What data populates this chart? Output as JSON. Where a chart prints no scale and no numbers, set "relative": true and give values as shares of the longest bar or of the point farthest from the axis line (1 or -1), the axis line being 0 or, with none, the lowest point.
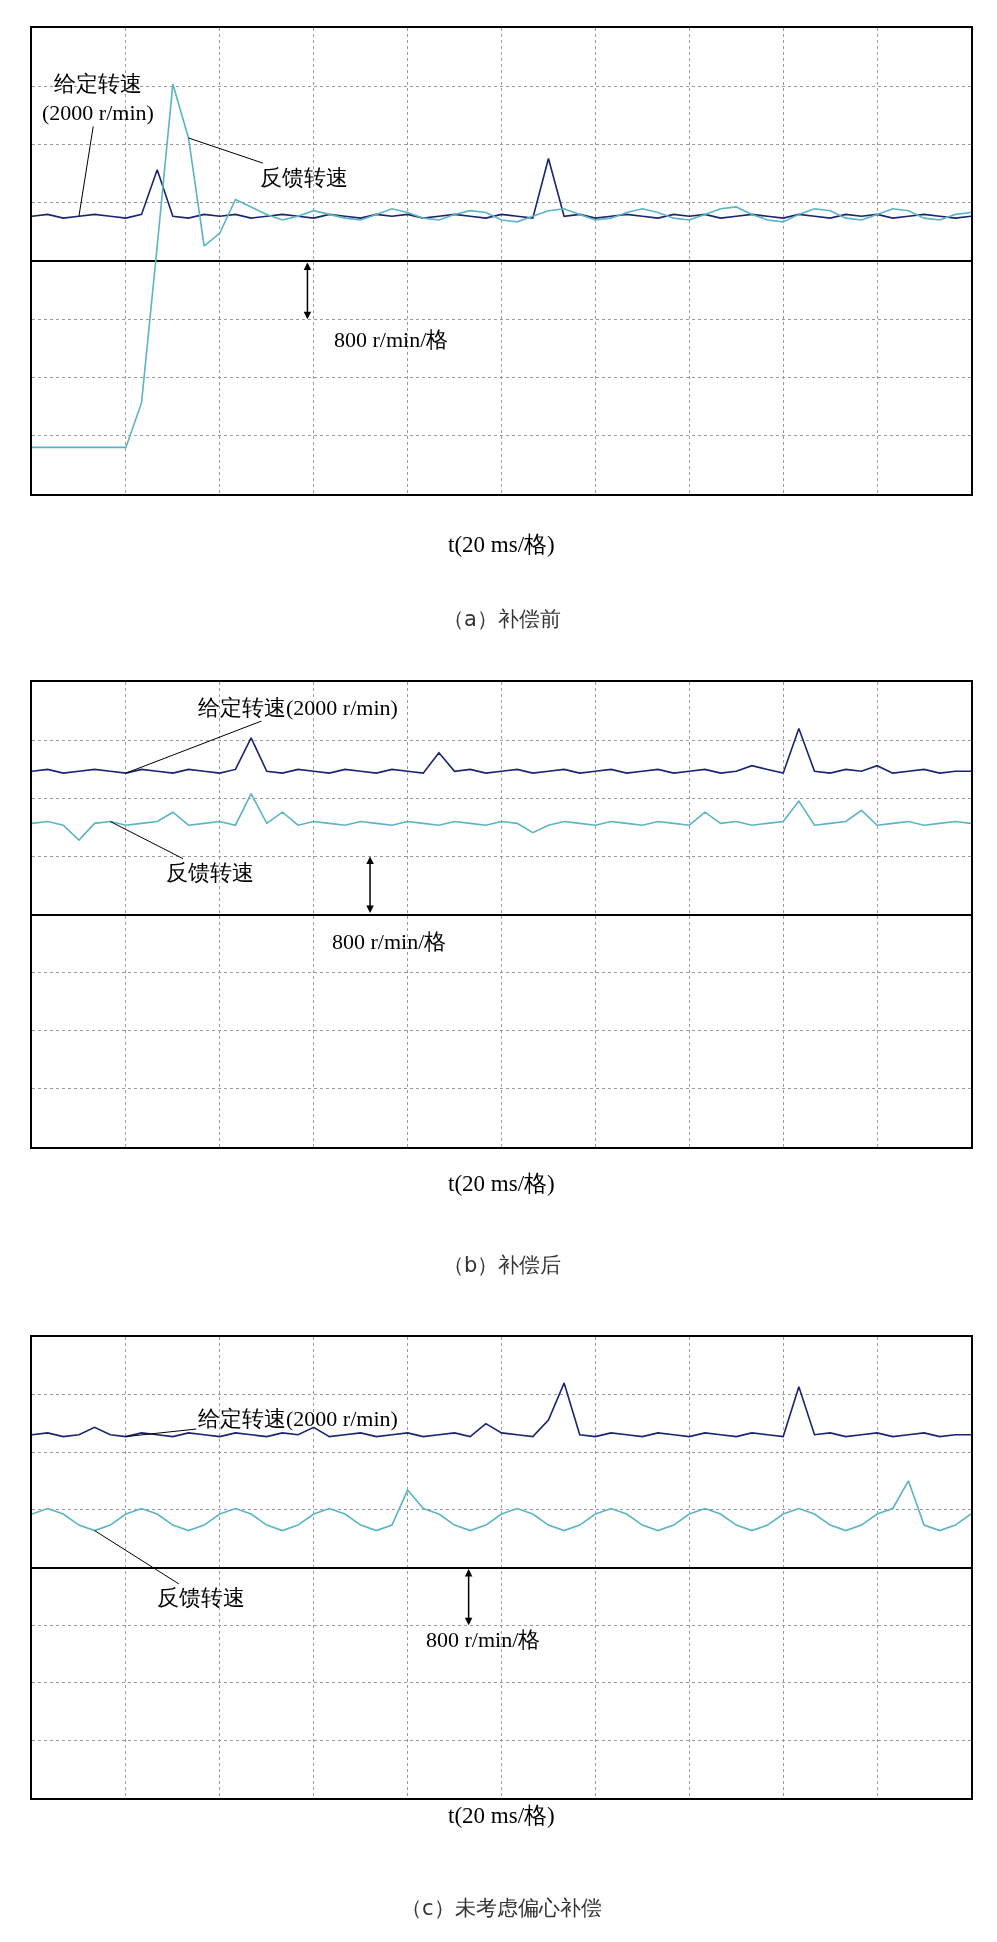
{
  "chart_data": [
    {
      "type": "line",
      "relative": true,
      "grid": true,
      "title": "（a）补偿前",
      "xlabel": "t(20 ms/格)",
      "categories": [
        null,
        null,
        null,
        null,
        null,
        null,
        null,
        null,
        null,
        null,
        null,
        null,
        null,
        null,
        null,
        null,
        null,
        null,
        null,
        null,
        null,
        null,
        null,
        null,
        null,
        null,
        null,
        null,
        null,
        null,
        null,
        null,
        null,
        null,
        null,
        null,
        null,
        null,
        null,
        null,
        null,
        null,
        null,
        null,
        null,
        null,
        null,
        null,
        null,
        null,
        null,
        null,
        null,
        null,
        null,
        null,
        null,
        null,
        null,
        null,
        null
      ],
      "series": [
        {
          "name": "给定转速\n(2000 r/min)",
          "color": "#1a2470",
          "values": [
            0.24,
            0.25,
            0.23,
            0.24,
            0.25,
            0.24,
            0.23,
            0.25,
            0.49,
            0.24,
            0.23,
            0.25,
            0.24,
            0.25,
            0.23,
            0.24,
            0.25,
            0.24,
            0.23,
            0.25,
            0.24,
            0.23,
            0.25,
            0.24,
            0.25,
            0.23,
            0.24,
            0.25,
            0.24,
            0.23,
            0.25,
            0.24,
            0.23,
            0.55,
            0.24,
            0.25,
            0.23,
            0.24,
            0.25,
            0.24,
            0.23,
            0.25,
            0.24,
            0.25,
            0.23,
            0.24,
            0.25,
            0.24,
            0.23,
            0.25,
            0.24,
            0.23,
            0.25,
            0.24,
            0.25,
            0.23,
            0.24,
            0.25,
            0.24,
            0.23,
            0.24
          ]
        },
        {
          "name": "反馈转速",
          "color": "#5ab4c4",
          "values": [
            -1.0,
            -1.0,
            -1.0,
            -1.0,
            -1.0,
            -1.0,
            -1.0,
            -0.76,
            0.08,
            0.95,
            0.66,
            0.08,
            0.15,
            0.33,
            0.29,
            0.25,
            0.22,
            0.24,
            0.27,
            0.25,
            0.23,
            0.22,
            0.25,
            0.28,
            0.26,
            0.23,
            0.22,
            0.25,
            0.27,
            0.26,
            0.22,
            0.21,
            0.24,
            0.27,
            0.28,
            0.25,
            0.22,
            0.23,
            0.26,
            0.28,
            0.26,
            0.23,
            0.22,
            0.25,
            0.28,
            0.29,
            0.25,
            0.22,
            0.21,
            0.25,
            0.28,
            0.27,
            0.23,
            0.22,
            0.25,
            0.28,
            0.27,
            0.23,
            0.22,
            0.25,
            0.26
          ]
        }
      ],
      "annotations": [
        "800 r/min/格"
      ]
    },
    {
      "type": "line",
      "relative": true,
      "grid": true,
      "title": "（b）补偿后",
      "xlabel": "t(20 ms/格)",
      "categories": [
        null,
        null,
        null,
        null,
        null,
        null,
        null,
        null,
        null,
        null,
        null,
        null,
        null,
        null,
        null,
        null,
        null,
        null,
        null,
        null,
        null,
        null,
        null,
        null,
        null,
        null,
        null,
        null,
        null,
        null,
        null,
        null,
        null,
        null,
        null,
        null,
        null,
        null,
        null,
        null,
        null,
        null,
        null,
        null,
        null,
        null,
        null,
        null,
        null,
        null,
        null,
        null,
        null,
        null,
        null,
        null,
        null,
        null,
        null,
        null,
        null
      ],
      "series": [
        {
          "name": "给定转速(2000 r/min)",
          "color": "#1a2470",
          "values": [
            0.77,
            0.78,
            0.76,
            0.77,
            0.78,
            0.77,
            0.76,
            0.78,
            0.77,
            0.76,
            0.78,
            0.77,
            0.76,
            0.78,
            0.95,
            0.77,
            0.76,
            0.78,
            0.77,
            0.76,
            0.78,
            0.77,
            0.76,
            0.78,
            0.77,
            0.76,
            0.87,
            0.77,
            0.78,
            0.76,
            0.77,
            0.78,
            0.76,
            0.77,
            0.78,
            0.76,
            0.77,
            0.78,
            0.76,
            0.77,
            0.78,
            0.76,
            0.77,
            0.78,
            0.76,
            0.77,
            0.8,
            0.78,
            0.76,
            1.0,
            0.77,
            0.76,
            0.78,
            0.77,
            0.8,
            0.76,
            0.77,
            0.78,
            0.76,
            0.77,
            0.77
          ]
        },
        {
          "name": "反馈转速",
          "color": "#5ab4c4",
          "values": [
            0.49,
            0.5,
            0.48,
            0.4,
            0.49,
            0.5,
            0.48,
            0.49,
            0.5,
            0.55,
            0.48,
            0.49,
            0.5,
            0.48,
            0.65,
            0.49,
            0.55,
            0.48,
            0.5,
            0.49,
            0.48,
            0.5,
            0.49,
            0.48,
            0.5,
            0.49,
            0.48,
            0.5,
            0.49,
            0.48,
            0.5,
            0.49,
            0.44,
            0.48,
            0.5,
            0.49,
            0.48,
            0.5,
            0.49,
            0.48,
            0.5,
            0.49,
            0.48,
            0.55,
            0.49,
            0.5,
            0.48,
            0.49,
            0.5,
            0.61,
            0.48,
            0.49,
            0.5,
            0.56,
            0.48,
            0.49,
            0.5,
            0.48,
            0.49,
            0.5,
            0.49
          ]
        }
      ],
      "annotations": [
        "800 r/min/格"
      ]
    },
    {
      "type": "line",
      "relative": true,
      "grid": true,
      "title": "（c）未考虑偏心补偿",
      "xlabel": "t(20 ms/格)",
      "categories": [
        null,
        null,
        null,
        null,
        null,
        null,
        null,
        null,
        null,
        null,
        null,
        null,
        null,
        null,
        null,
        null,
        null,
        null,
        null,
        null,
        null,
        null,
        null,
        null,
        null,
        null,
        null,
        null,
        null,
        null,
        null,
        null,
        null,
        null,
        null,
        null,
        null,
        null,
        null,
        null,
        null,
        null,
        null,
        null,
        null,
        null,
        null,
        null,
        null,
        null,
        null,
        null,
        null,
        null,
        null,
        null,
        null,
        null,
        null,
        null,
        null
      ],
      "series": [
        {
          "name": "给定转速(2000 r/min)",
          "color": "#1a2470",
          "values": [
            0.72,
            0.73,
            0.71,
            0.72,
            0.76,
            0.72,
            0.71,
            0.73,
            0.72,
            0.71,
            0.73,
            0.72,
            0.71,
            0.73,
            0.72,
            0.71,
            0.73,
            0.72,
            0.76,
            0.71,
            0.72,
            0.73,
            0.71,
            0.72,
            0.73,
            0.71,
            0.72,
            0.73,
            0.71,
            0.78,
            0.73,
            0.72,
            0.71,
            0.8,
            1.0,
            0.72,
            0.71,
            0.73,
            0.72,
            0.71,
            0.73,
            0.72,
            0.71,
            0.73,
            0.72,
            0.71,
            0.73,
            0.72,
            0.71,
            0.98,
            0.72,
            0.73,
            0.71,
            0.72,
            0.73,
            0.71,
            0.72,
            0.73,
            0.71,
            0.72,
            0.72
          ]
        },
        {
          "name": "反馈转速",
          "color": "#5ab4c4",
          "values": [
            0.29,
            0.32,
            0.29,
            0.23,
            0.2,
            0.23,
            0.29,
            0.32,
            0.29,
            0.23,
            0.2,
            0.23,
            0.29,
            0.32,
            0.29,
            0.23,
            0.2,
            0.23,
            0.29,
            0.32,
            0.29,
            0.23,
            0.2,
            0.23,
            0.42,
            0.32,
            0.29,
            0.23,
            0.2,
            0.23,
            0.29,
            0.32,
            0.29,
            0.23,
            0.2,
            0.23,
            0.29,
            0.32,
            0.29,
            0.23,
            0.2,
            0.23,
            0.29,
            0.32,
            0.29,
            0.23,
            0.2,
            0.23,
            0.29,
            0.32,
            0.29,
            0.23,
            0.2,
            0.23,
            0.29,
            0.32,
            0.47,
            0.23,
            0.2,
            0.23,
            0.29
          ]
        }
      ],
      "annotations": [
        "800 r/min/格"
      ]
    }
  ]
}
